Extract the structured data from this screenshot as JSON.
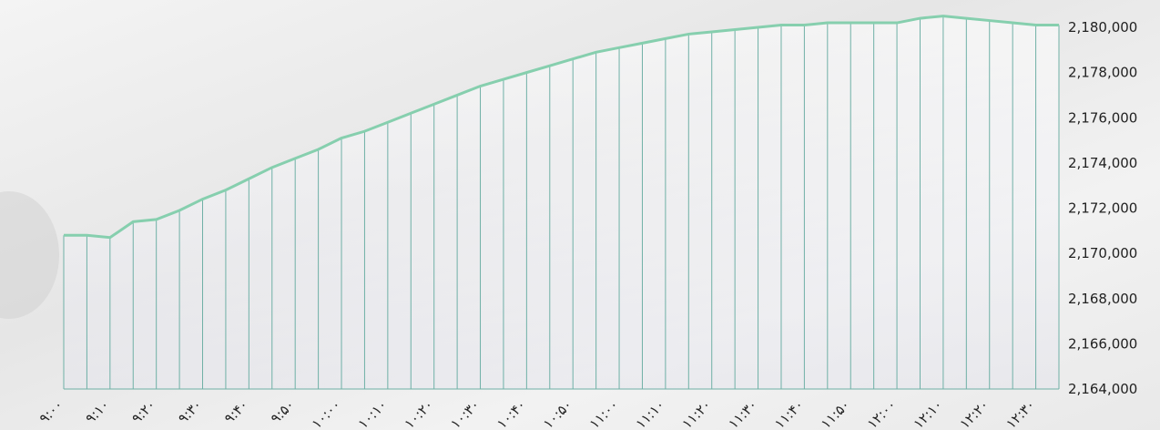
{
  "chart_data": {
    "type": "area",
    "categories": [
      "۹:۰۰",
      null,
      "۹:۱۰",
      null,
      "۹:۲۰",
      null,
      "۹:۳۰",
      null,
      "۹:۴۰",
      null,
      "۹:۵۰",
      null,
      "۱۰:۰۰",
      null,
      "۱۰:۱۰",
      null,
      "۱۰:۲۰",
      null,
      "۱۰:۳۰",
      null,
      "۱۰:۴۰",
      null,
      "۱۰:۵۰",
      null,
      "۱۱:۰۰",
      null,
      "۱۱:۱۰",
      null,
      "۱۱:۲۰",
      null,
      "۱۱:۳۰",
      null,
      "۱۱:۴۰",
      null,
      "۱۱:۵۰",
      null,
      "۱۲:۰۰",
      null,
      "۱۲:۱۰",
      null,
      "۱۲:۲۰",
      null,
      "۱۲:۳۰",
      null
    ],
    "values": [
      2170800,
      2170800,
      2170700,
      2171400,
      2171500,
      2171900,
      2172400,
      2172800,
      2173300,
      2173800,
      2174200,
      2174600,
      2175100,
      2175400,
      2175800,
      2176200,
      2176600,
      2177000,
      2177400,
      2177700,
      2178000,
      2178300,
      2178600,
      2178900,
      2179100,
      2179300,
      2179500,
      2179700,
      2179800,
      2179900,
      2180000,
      2180100,
      2180100,
      2180200,
      2180200,
      2180200,
      2180200,
      2180400,
      2180500,
      2180400,
      2180300,
      2180200,
      2180100,
      2180100
    ],
    "color": "#86cfae",
    "drop_line_color": "#6fb0a6",
    "ylim": [
      2164000,
      2180000
    ],
    "yticks": [
      {
        "value": 2164000,
        "label": "2,164,000"
      },
      {
        "value": 2166000,
        "label": "2,166,000"
      },
      {
        "value": 2168000,
        "label": "2,168,000"
      },
      {
        "value": 2170000,
        "label": "2,170,000"
      },
      {
        "value": 2172000,
        "label": "2,172,000"
      },
      {
        "value": 2174000,
        "label": "2,174,000"
      },
      {
        "value": 2176000,
        "label": "2,176,000"
      },
      {
        "value": 2178000,
        "label": "2,178,000"
      },
      {
        "value": 2180000,
        "label": "2,180,000"
      }
    ],
    "y_axis_side": "right"
  }
}
